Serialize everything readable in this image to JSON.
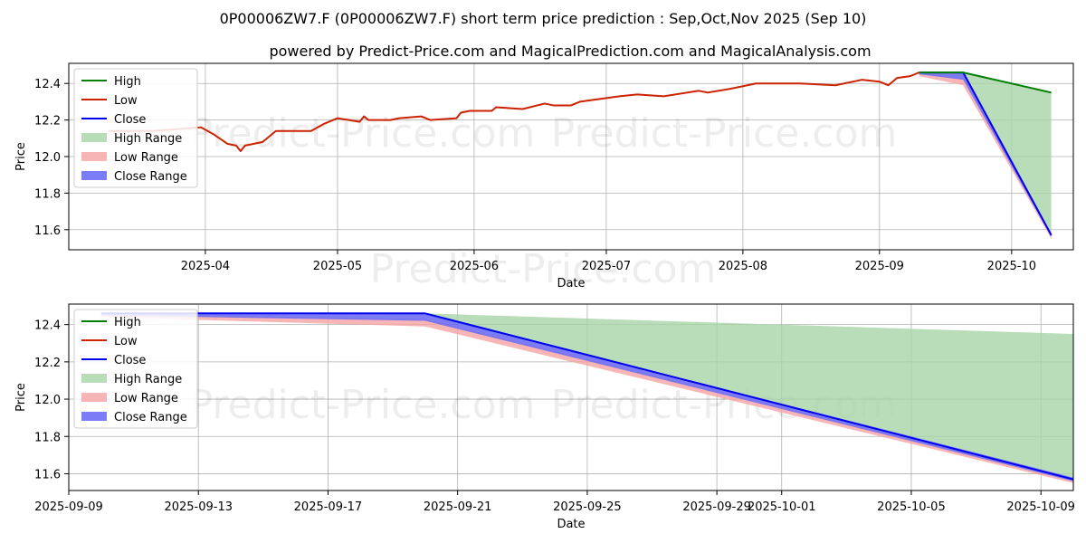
{
  "chart_data": [
    {
      "type": "line",
      "title": "0P00006ZW7.F (0P00006ZW7.F) short term price prediction : Sep,Oct,Nov 2025 (Sep 10)",
      "subtitle": "powered by Predict-Price.com and MagicalPrediction.com and MagicalAnalysis.com",
      "xlabel": "Date",
      "ylabel": "Price",
      "xlim": [
        "2025-03-01",
        "2025-10-15"
      ],
      "ylim": [
        11.49,
        12.51
      ],
      "xticks": [
        {
          "date": "2025-04-01",
          "label": "2025-04"
        },
        {
          "date": "2025-05-01",
          "label": "2025-05"
        },
        {
          "date": "2025-06-01",
          "label": "2025-06"
        },
        {
          "date": "2025-07-01",
          "label": "2025-07"
        },
        {
          "date": "2025-08-01",
          "label": "2025-08"
        },
        {
          "date": "2025-09-01",
          "label": "2025-09"
        },
        {
          "date": "2025-10-01",
          "label": "2025-10"
        }
      ],
      "yticks": [
        11.6,
        11.8,
        12.0,
        12.2,
        12.4
      ],
      "ytick_labels": [
        "11.6",
        "11.8",
        "12.0",
        "12.2",
        "12.4"
      ],
      "legend": [
        "High",
        "Low",
        "Close",
        "High Range",
        "Low Range",
        "Close Range"
      ],
      "legend_position": "top-left",
      "grid": true,
      "series": [
        {
          "name": "Low",
          "x": [
            "2025-03-10",
            "2025-03-20",
            "2025-03-31",
            "2025-04-03",
            "2025-04-06",
            "2025-04-08",
            "2025-04-09",
            "2025-04-10",
            "2025-04-14",
            "2025-04-17",
            "2025-04-25",
            "2025-04-28",
            "2025-05-01",
            "2025-05-06",
            "2025-05-07",
            "2025-05-08",
            "2025-05-13",
            "2025-05-15",
            "2025-05-20",
            "2025-05-22",
            "2025-05-28",
            "2025-05-29",
            "2025-05-31",
            "2025-06-05",
            "2025-06-06",
            "2025-06-12",
            "2025-06-17",
            "2025-06-19",
            "2025-06-23",
            "2025-06-25",
            "2025-07-04",
            "2025-07-08",
            "2025-07-14",
            "2025-07-22",
            "2025-07-24",
            "2025-07-29",
            "2025-08-04",
            "2025-08-14",
            "2025-08-22",
            "2025-08-28",
            "2025-09-01",
            "2025-09-03",
            "2025-09-05",
            "2025-09-08",
            "2025-09-09",
            "2025-09-10"
          ],
          "values": [
            12.14,
            12.14,
            12.16,
            12.12,
            12.07,
            12.06,
            12.03,
            12.06,
            12.08,
            12.14,
            12.14,
            12.18,
            12.21,
            12.19,
            12.22,
            12.2,
            12.2,
            12.21,
            12.22,
            12.2,
            12.21,
            12.24,
            12.25,
            12.25,
            12.27,
            12.26,
            12.29,
            12.28,
            12.28,
            12.3,
            12.33,
            12.34,
            12.33,
            12.36,
            12.35,
            12.37,
            12.4,
            12.4,
            12.39,
            12.42,
            12.41,
            12.39,
            12.43,
            12.44,
            12.45,
            12.46
          ]
        },
        {
          "name": "Close",
          "x": [
            "2025-09-10",
            "2025-09-20",
            "2025-10-10"
          ],
          "values": [
            12.46,
            12.46,
            11.57
          ]
        },
        {
          "name": "High",
          "x": [
            "2025-09-10",
            "2025-09-20",
            "2025-10-10"
          ],
          "values": [
            12.46,
            12.46,
            12.35
          ]
        },
        {
          "name": "High Range",
          "x": [
            "2025-09-10",
            "2025-09-20",
            "2025-10-10"
          ],
          "lower": [
            12.46,
            12.45,
            11.58
          ],
          "upper": [
            12.46,
            12.46,
            12.35
          ]
        },
        {
          "name": "Low Range",
          "x": [
            "2025-09-10",
            "2025-09-20",
            "2025-10-10"
          ],
          "lower": [
            12.44,
            12.39,
            11.55
          ],
          "upper": [
            12.46,
            12.43,
            11.57
          ]
        },
        {
          "name": "Close Range",
          "x": [
            "2025-09-10",
            "2025-09-20",
            "2025-10-10"
          ],
          "lower": [
            12.45,
            12.42,
            11.56
          ],
          "upper": [
            12.46,
            12.46,
            11.58
          ]
        }
      ]
    },
    {
      "type": "line",
      "xlabel": "Date",
      "ylabel": "Price",
      "xlim": [
        "2025-09-09",
        "2025-10-10"
      ],
      "ylim": [
        11.51,
        12.51
      ],
      "xticks": [
        {
          "date": "2025-09-09",
          "label": "2025-09-09"
        },
        {
          "date": "2025-09-13",
          "label": "2025-09-13"
        },
        {
          "date": "2025-09-17",
          "label": "2025-09-17"
        },
        {
          "date": "2025-09-21",
          "label": "2025-09-21"
        },
        {
          "date": "2025-09-25",
          "label": "2025-09-25"
        },
        {
          "date": "2025-09-29",
          "label": "2025-09-29"
        },
        {
          "date": "2025-10-01",
          "label": "2025-10-01"
        },
        {
          "date": "2025-10-05",
          "label": "2025-10-05"
        },
        {
          "date": "2025-10-09",
          "label": "2025-10-09"
        }
      ],
      "yticks": [
        11.6,
        11.8,
        12.0,
        12.2,
        12.4
      ],
      "ytick_labels": [
        "11.6",
        "11.8",
        "12.0",
        "12.2",
        "12.4"
      ],
      "legend": [
        "High",
        "Low",
        "Close",
        "High Range",
        "Low Range",
        "Close Range"
      ],
      "legend_position": "top-left",
      "grid": true,
      "series": [
        {
          "name": "High Range",
          "x": [
            "2025-09-10",
            "2025-09-20",
            "2025-10-10"
          ],
          "lower": [
            12.46,
            12.45,
            11.58
          ],
          "upper": [
            12.46,
            12.46,
            12.35
          ]
        },
        {
          "name": "Low Range",
          "x": [
            "2025-09-10",
            "2025-09-20",
            "2025-10-10"
          ],
          "lower": [
            12.44,
            12.39,
            11.55
          ],
          "upper": [
            12.46,
            12.43,
            11.57
          ]
        },
        {
          "name": "Close Range",
          "x": [
            "2025-09-10",
            "2025-09-20",
            "2025-10-10"
          ],
          "lower": [
            12.45,
            12.42,
            11.56
          ],
          "upper": [
            12.46,
            12.46,
            11.58
          ]
        },
        {
          "name": "Close",
          "x": [
            "2025-09-10",
            "2025-09-20",
            "2025-10-10"
          ],
          "values": [
            12.46,
            12.46,
            11.57
          ]
        }
      ]
    }
  ],
  "watermark": "Predict-Price.com",
  "colors": {
    "high": "#008000",
    "low": "#cc2200",
    "close": "#0000ee",
    "high_range": "#a8d5a8",
    "low_range": "#f5a3a3",
    "close_range": "#6e6ef5",
    "grid": "#b0b0b0"
  }
}
